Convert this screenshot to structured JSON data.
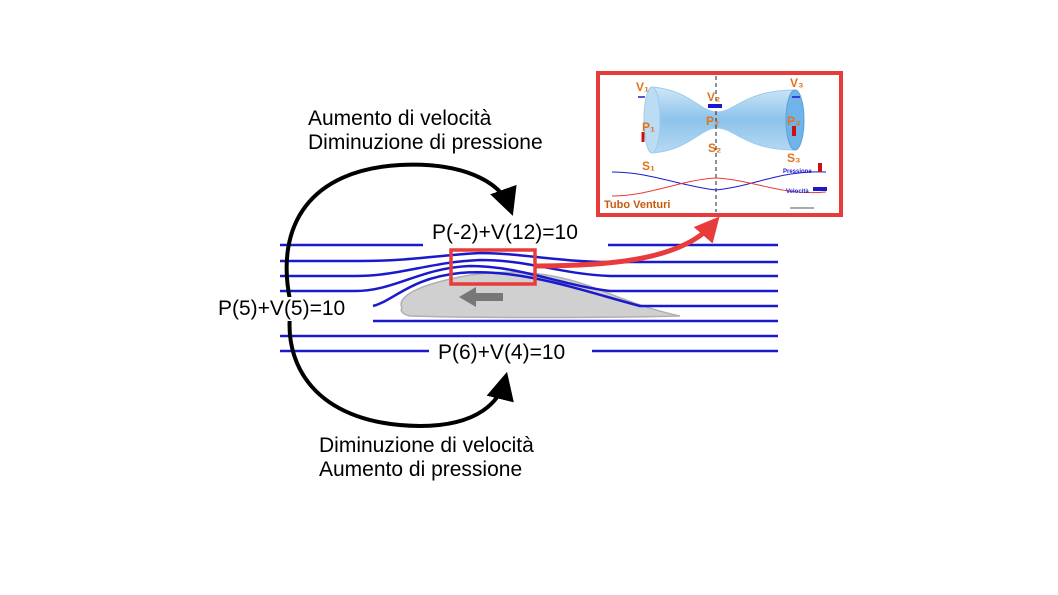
{
  "labels": {
    "top_line1": "Aumento di velocità",
    "top_line2": "Diminuzione di pressione",
    "bottom_line1": "Diminuzione di velocità",
    "bottom_line2": "Aumento di pressione",
    "left_eq": "P(5)+V(5)=10",
    "top_eq": "P(-2)+V(12)=10",
    "bottom_eq": "P(6)+V(4)=10"
  },
  "venturi": {
    "title": "Tubo Venturi",
    "v1": "V₁",
    "v2": "V₂",
    "v3": "V₃",
    "p1": "P₁",
    "p2": "P₂",
    "p3": "P₃",
    "s1": "S₁",
    "s2": "S₂",
    "s3": "S₃",
    "legend_pressure": "Pressione",
    "legend_velocity": "Velocità"
  },
  "colors": {
    "streamline": "#1a1acc",
    "highlight": "#e83b3b",
    "airfoil": "#d0d0d0",
    "arrow": "#000000",
    "venturi_label": "#e0731e"
  }
}
